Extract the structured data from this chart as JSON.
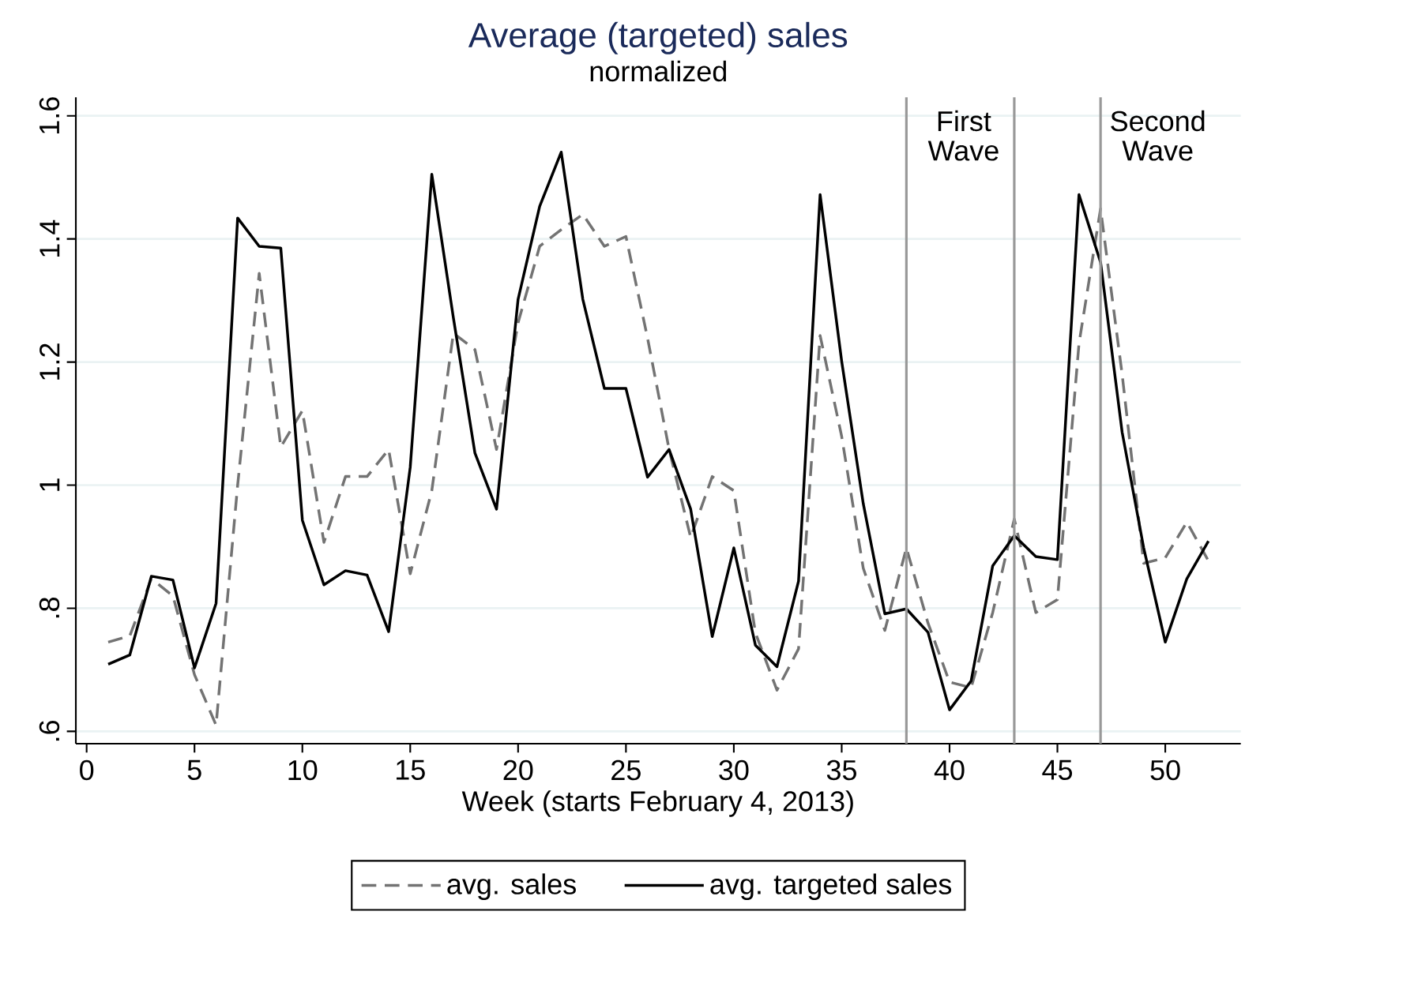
{
  "chart_data": {
    "type": "line",
    "title": "Average (targeted) sales",
    "subtitle": "normalized",
    "xlabel": "Week (starts February 4, 2013)",
    "x": [
      1,
      2,
      3,
      4,
      5,
      6,
      7,
      8,
      9,
      10,
      11,
      12,
      13,
      14,
      15,
      16,
      17,
      18,
      19,
      20,
      21,
      22,
      23,
      24,
      25,
      26,
      27,
      28,
      29,
      30,
      31,
      32,
      33,
      34,
      35,
      36,
      37,
      38,
      39,
      40,
      41,
      42,
      43,
      44,
      45,
      46,
      47,
      48,
      49,
      50,
      51,
      52
    ],
    "series": [
      {
        "name": "avg. sales",
        "color": "#737373",
        "line_style": "dashed",
        "values": [
          0.745,
          0.755,
          0.848,
          0.82,
          0.692,
          0.61,
          1.0,
          1.344,
          1.062,
          1.121,
          0.907,
          1.014,
          1.014,
          1.058,
          0.856,
          0.991,
          1.247,
          1.22,
          1.058,
          1.264,
          1.388,
          1.415,
          1.44,
          1.388,
          1.404,
          1.239,
          1.058,
          0.915,
          1.014,
          0.991,
          0.76,
          0.667,
          0.734,
          1.243,
          1.079,
          0.865,
          0.764,
          0.898,
          0.776,
          0.68,
          0.671,
          0.793,
          0.945,
          0.793,
          0.814,
          1.23,
          1.449,
          1.18,
          0.873,
          0.882,
          0.94,
          0.877
        ]
      },
      {
        "name": "avg. targeted sales",
        "color": "#000000",
        "line_style": "solid",
        "values": [
          0.709,
          0.724,
          0.852,
          0.846,
          0.703,
          0.808,
          1.434,
          1.388,
          1.385,
          0.943,
          0.838,
          0.861,
          0.854,
          0.762,
          1.029,
          1.505,
          1.272,
          1.052,
          0.961,
          1.302,
          1.453,
          1.541,
          1.302,
          1.157,
          1.157,
          1.013,
          1.058,
          0.961,
          0.754,
          0.898,
          0.74,
          0.705,
          0.844,
          1.472,
          1.201,
          0.97,
          0.791,
          0.799,
          0.761,
          0.635,
          0.682,
          0.869,
          0.918,
          0.884,
          0.879,
          1.472,
          1.362,
          1.086,
          0.898,
          0.745,
          0.848,
          0.909
        ]
      }
    ],
    "xlim": [
      -0.5,
      53.5
    ],
    "xticks": [
      0,
      5,
      10,
      15,
      20,
      25,
      30,
      35,
      40,
      45,
      50
    ],
    "ylim": [
      0.58,
      1.63
    ],
    "yticks": [
      {
        "value": 0.6,
        "label": ".6"
      },
      {
        "value": 0.8,
        "label": ".8"
      },
      1,
      {
        "value": 1.2,
        "label": "1.2"
      },
      {
        "value": 1.4,
        "label": "1.4"
      },
      {
        "value": 1.6,
        "label": "1.6"
      }
    ],
    "ref_lines": [
      {
        "axis": "x",
        "value": 38,
        "color": "#999999",
        "label": "First Wave"
      },
      {
        "axis": "x",
        "value": 43,
        "color": "#999999"
      },
      {
        "axis": "x",
        "value": 47,
        "color": "#999999",
        "label": "Second Wave"
      }
    ],
    "grid": "y",
    "legend": "bottom"
  }
}
